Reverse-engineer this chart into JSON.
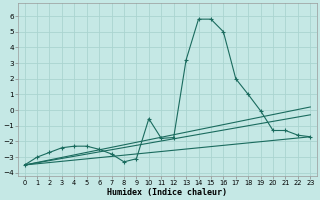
{
  "xlabel": "Humidex (Indice chaleur)",
  "bg_color": "#c5e8e5",
  "grid_color": "#aad4d0",
  "line_color": "#1a6b5e",
  "xlim": [
    -0.5,
    23.5
  ],
  "ylim": [
    -4.2,
    6.8
  ],
  "xticks": [
    0,
    1,
    2,
    3,
    4,
    5,
    6,
    7,
    8,
    9,
    10,
    11,
    12,
    13,
    14,
    15,
    16,
    17,
    18,
    19,
    20,
    21,
    22,
    23
  ],
  "yticks": [
    -4,
    -3,
    -2,
    -1,
    0,
    1,
    2,
    3,
    4,
    5,
    6
  ],
  "main_x": [
    0,
    1,
    2,
    3,
    4,
    5,
    6,
    7,
    8,
    9,
    10,
    11,
    12,
    13,
    14,
    15,
    16,
    17,
    18,
    19,
    20,
    21,
    22,
    23
  ],
  "main_y": [
    -3.5,
    -3.0,
    -2.7,
    -2.4,
    -2.3,
    -2.3,
    -2.5,
    -2.8,
    -3.3,
    -3.1,
    -0.55,
    -1.8,
    -1.75,
    3.2,
    5.8,
    5.8,
    5.0,
    2.0,
    1.0,
    -0.05,
    -1.3,
    -1.3,
    -1.6,
    -1.7
  ],
  "line1_x": [
    0,
    23
  ],
  "line1_y": [
    -3.5,
    -1.7
  ],
  "line2_x": [
    0,
    23
  ],
  "line2_y": [
    -3.5,
    -0.3
  ],
  "line3_x": [
    0,
    23
  ],
  "line3_y": [
    -3.5,
    0.2
  ]
}
